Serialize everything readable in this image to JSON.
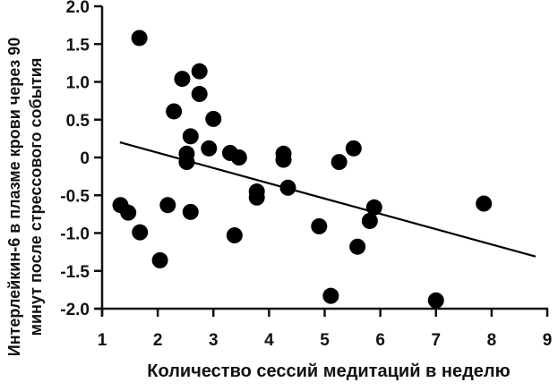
{
  "chart_data": {
    "type": "scatter",
    "title": "",
    "xlabel": "Количество сессий медитаций в неделю",
    "ylabel_lines": [
      "Интерлейкин-6 в плазме крови через 90",
      "минут после стрессового события"
    ],
    "ylabel": "Интерлейкин-6 в плазме крови через 90 минут после стрессового события",
    "xlim": [
      1,
      9
    ],
    "ylim": [
      -2.0,
      2.0
    ],
    "x_ticks": [
      1,
      2,
      3,
      4,
      5,
      6,
      7,
      8,
      9
    ],
    "x_tick_labels": [
      "1",
      "2",
      "3",
      "4",
      "5",
      "6",
      "7",
      "8",
      "9"
    ],
    "y_ticks": [
      2.0,
      1.5,
      1.0,
      0.5,
      0,
      -0.5,
      -1.0,
      -1.5,
      -2.0
    ],
    "y_tick_labels": [
      "2.0",
      "1.5",
      "1.0",
      "0.5",
      "0",
      "-0.5",
      "-1.0",
      "-1.5",
      "-2.0"
    ],
    "grid": false,
    "legend": null,
    "series": [
      {
        "name": "participants",
        "marker": "filled-circle",
        "color": "#000000",
        "points": [
          {
            "x": 1.33,
            "y": -0.63
          },
          {
            "x": 1.47,
            "y": -0.73
          },
          {
            "x": 1.67,
            "y": 1.58
          },
          {
            "x": 1.68,
            "y": -0.99
          },
          {
            "x": 2.04,
            "y": -1.36
          },
          {
            "x": 2.18,
            "y": -0.63
          },
          {
            "x": 2.29,
            "y": 0.61
          },
          {
            "x": 2.44,
            "y": 1.04
          },
          {
            "x": 2.52,
            "y": 0.05
          },
          {
            "x": 2.52,
            "y": -0.06
          },
          {
            "x": 2.59,
            "y": 0.28
          },
          {
            "x": 2.59,
            "y": -0.72
          },
          {
            "x": 2.75,
            "y": 1.14
          },
          {
            "x": 2.75,
            "y": 0.84
          },
          {
            "x": 2.92,
            "y": 0.12
          },
          {
            "x": 3.0,
            "y": 0.51
          },
          {
            "x": 3.3,
            "y": 0.06
          },
          {
            "x": 3.38,
            "y": -1.03
          },
          {
            "x": 3.46,
            "y": 0.0
          },
          {
            "x": 3.78,
            "y": -0.45
          },
          {
            "x": 3.78,
            "y": -0.53
          },
          {
            "x": 4.26,
            "y": 0.05
          },
          {
            "x": 4.26,
            "y": -0.03
          },
          {
            "x": 4.34,
            "y": -0.4
          },
          {
            "x": 4.9,
            "y": -0.91
          },
          {
            "x": 5.11,
            "y": -1.83
          },
          {
            "x": 5.26,
            "y": -0.06
          },
          {
            "x": 5.52,
            "y": 0.12
          },
          {
            "x": 5.59,
            "y": -1.18
          },
          {
            "x": 5.81,
            "y": -0.84
          },
          {
            "x": 5.89,
            "y": -0.66
          },
          {
            "x": 7.0,
            "y": -1.89
          },
          {
            "x": 7.86,
            "y": -0.61
          }
        ]
      }
    ],
    "trendline": {
      "type": "linear",
      "color": "#000000",
      "x1": 1.32,
      "y1": 0.2,
      "x2": 8.79,
      "y2": -1.31
    }
  },
  "layout": {
    "plot": {
      "x0px": 114,
      "x1px": 611,
      "y0px": 345,
      "y1px": 7
    },
    "marker_radius": 9
  }
}
